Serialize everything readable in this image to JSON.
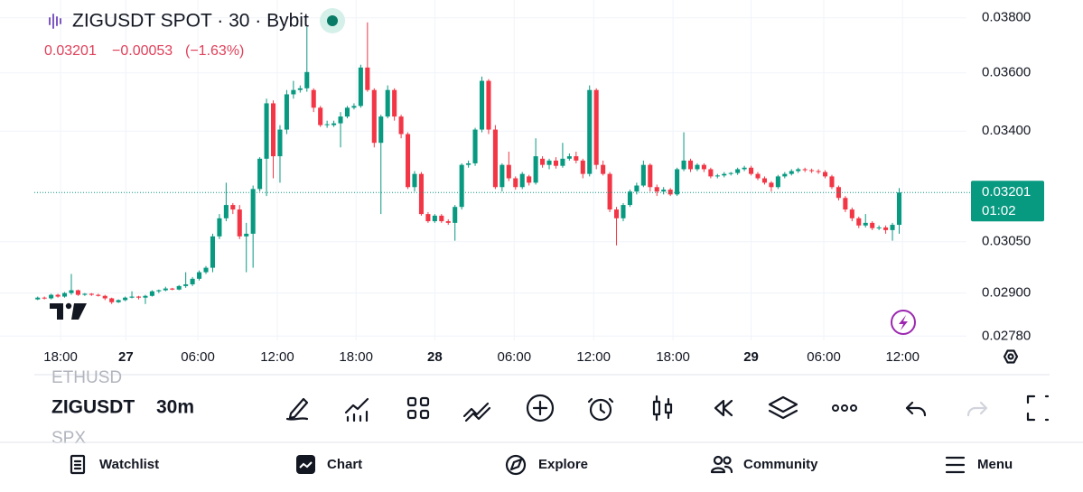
{
  "header": {
    "title": "ZIGUSDT SPOT · 30 · Bybit",
    "change": "−0.00053",
    "change_pct": "(−1.63%)"
  },
  "chart_data": {
    "type": "candlestick",
    "open": [
      0.02882,
      0.02887,
      0.02885,
      0.02895,
      0.0289,
      0.029,
      0.02908,
      0.02895,
      0.02898,
      0.02895,
      0.02892,
      0.02885,
      0.02874,
      0.0288,
      0.02887,
      0.0289,
      0.02887,
      0.02892,
      0.02905,
      0.02908,
      0.02913,
      0.0291,
      0.0292,
      0.02925,
      0.02941,
      0.0296,
      0.02973,
      0.03066,
      0.03121,
      0.03162,
      0.03148,
      0.03066,
      0.03074,
      0.03212,
      0.03309,
      0.03494,
      0.03317,
      0.03405,
      0.03525,
      0.0354,
      0.03546,
      0.0354,
      0.03479,
      0.0342,
      0.0342,
      0.03426,
      0.03449,
      0.03479,
      0.03485,
      0.03619,
      0.0354,
      0.03361,
      0.03449,
      0.0354,
      0.03449,
      0.0339,
      0.03218,
      0.0326,
      0.03134,
      0.03112,
      0.03129,
      0.03112,
      0.03107,
      0.03156,
      0.03289,
      0.03294,
      0.03405,
      0.03572,
      0.03405,
      0.03218,
      0.03289,
      0.03246,
      0.03218,
      0.03252,
      0.03232,
      0.03309,
      0.03289,
      0.03303,
      0.03286,
      0.03309,
      0.03317,
      0.03303,
      0.0326,
      0.0354,
      0.03289,
      0.0326,
      0.03148,
      0.03121,
      0.03162,
      0.03204,
      0.03223,
      0.03289,
      0.03218,
      0.03204,
      0.0321,
      0.03195,
      0.03275,
      0.03303,
      0.03275,
      0.03289,
      0.03275,
      0.03252,
      0.03255,
      0.0326,
      0.03263,
      0.03275,
      0.0328,
      0.0326,
      0.03246,
      0.03232,
      0.03218,
      0.03252,
      0.0326,
      0.03269,
      0.03275,
      0.03272,
      0.03269,
      0.03266,
      0.03252,
      0.03218,
      0.03184,
      0.03148,
      0.03121,
      0.03099,
      0.03107,
      0.03091,
      0.03093,
      0.03085,
      0.03101
    ],
    "high": [
      0.0289,
      0.0289,
      0.02898,
      0.02898,
      0.02903,
      0.02955,
      0.0291,
      0.029,
      0.029,
      0.02898,
      0.02895,
      0.02887,
      0.02882,
      0.0289,
      0.02905,
      0.02892,
      0.02895,
      0.02908,
      0.0291,
      0.02918,
      0.02915,
      0.02923,
      0.0296,
      0.02946,
      0.02965,
      0.02978,
      0.03074,
      0.03134,
      0.03232,
      0.03168,
      0.03162,
      0.03107,
      0.03223,
      0.03314,
      0.0351,
      0.03504,
      0.0342,
      0.0354,
      0.03572,
      0.03556,
      0.03766,
      0.03546,
      0.03485,
      0.03435,
      0.03435,
      0.03464,
      0.03485,
      0.03494,
      0.03629,
      0.03783,
      0.03546,
      0.03455,
      0.03556,
      0.03546,
      0.03455,
      0.03396,
      0.03269,
      0.03266,
      0.0314,
      0.03134,
      0.03134,
      0.03118,
      0.03162,
      0.03294,
      0.03303,
      0.03411,
      0.03587,
      0.03578,
      0.0342,
      0.03294,
      0.03332,
      0.03252,
      0.03266,
      0.03257,
      0.03376,
      0.03317,
      0.03309,
      0.03314,
      0.03361,
      0.03326,
      0.03332,
      0.03309,
      0.03556,
      0.03546,
      0.03303,
      0.03266,
      0.03156,
      0.03168,
      0.0321,
      0.03232,
      0.03303,
      0.03294,
      0.03226,
      0.03218,
      0.03215,
      0.0328,
      0.03396,
      0.03309,
      0.03294,
      0.03294,
      0.0328,
      0.0326,
      0.03266,
      0.03266,
      0.0328,
      0.03286,
      0.03286,
      0.03266,
      0.03252,
      0.03237,
      0.03257,
      0.03266,
      0.03275,
      0.0328,
      0.0328,
      0.03277,
      0.03275,
      0.03272,
      0.03257,
      0.03223,
      0.0319,
      0.03154,
      0.03126,
      0.03134,
      0.03112,
      0.03099,
      0.03099,
      0.03107,
      0.03215
    ],
    "low": [
      0.0288,
      0.02882,
      0.02882,
      0.02887,
      0.02887,
      0.02895,
      0.02892,
      0.02892,
      0.02892,
      0.0289,
      0.0288,
      0.02869,
      0.02872,
      0.02877,
      0.02885,
      0.02882,
      0.02869,
      0.0289,
      0.029,
      0.02905,
      0.02908,
      0.02908,
      0.02915,
      0.0292,
      0.02936,
      0.02955,
      0.0296,
      0.03058,
      0.03112,
      0.03134,
      0.03058,
      0.0296,
      0.02973,
      0.03204,
      0.0319,
      0.03246,
      0.03232,
      0.0339,
      0.0351,
      0.03531,
      0.03534,
      0.03464,
      0.03414,
      0.03411,
      0.03414,
      0.03346,
      0.03443,
      0.03473,
      0.03479,
      0.03534,
      0.03346,
      0.03134,
      0.03443,
      0.03435,
      0.03376,
      0.03212,
      0.03204,
      0.03129,
      0.03107,
      0.03107,
      0.03107,
      0.03101,
      0.03053,
      0.03148,
      0.0328,
      0.03286,
      0.03396,
      0.0339,
      0.03212,
      0.03204,
      0.03237,
      0.0321,
      0.03212,
      0.03223,
      0.03226,
      0.0328,
      0.03275,
      0.03277,
      0.0328,
      0.03303,
      0.03294,
      0.03246,
      0.03252,
      0.03275,
      0.03255,
      0.0314,
      0.03039,
      0.03112,
      0.03156,
      0.03195,
      0.03218,
      0.03204,
      0.0319,
      0.03195,
      0.0319,
      0.0319,
      0.03269,
      0.03266,
      0.03269,
      0.03266,
      0.03246,
      0.03246,
      0.03249,
      0.03255,
      0.03257,
      0.03269,
      0.03255,
      0.0324,
      0.03226,
      0.03204,
      0.03212,
      0.03246,
      0.03255,
      0.03263,
      0.03266,
      0.03263,
      0.0326,
      0.03246,
      0.03212,
      0.03176,
      0.0314,
      0.03112,
      0.03091,
      0.03093,
      0.03085,
      0.03085,
      0.03074,
      0.03053,
      0.03074
    ],
    "close": [
      0.02887,
      0.02885,
      0.02895,
      0.0289,
      0.029,
      0.02908,
      0.02895,
      0.02898,
      0.02895,
      0.02892,
      0.02885,
      0.02874,
      0.0288,
      0.02887,
      0.0289,
      0.02887,
      0.02892,
      0.02905,
      0.02908,
      0.02913,
      0.0291,
      0.0292,
      0.02925,
      0.02941,
      0.0296,
      0.02973,
      0.03066,
      0.03121,
      0.03162,
      0.03148,
      0.03066,
      0.03074,
      0.03212,
      0.03309,
      0.03494,
      0.03317,
      0.03405,
      0.03525,
      0.0354,
      0.03546,
      0.03603,
      0.03479,
      0.0342,
      0.03423,
      0.03426,
      0.03449,
      0.03479,
      0.03485,
      0.03619,
      0.0354,
      0.03361,
      0.03449,
      0.0354,
      0.03449,
      0.0339,
      0.03218,
      0.0326,
      0.03134,
      0.03112,
      0.03129,
      0.03112,
      0.03107,
      0.03156,
      0.03289,
      0.03294,
      0.03405,
      0.03572,
      0.03405,
      0.03218,
      0.03289,
      0.03246,
      0.03218,
      0.0326,
      0.03232,
      0.03317,
      0.03289,
      0.03303,
      0.03286,
      0.03309,
      0.03317,
      0.03303,
      0.0326,
      0.0354,
      0.03289,
      0.0326,
      0.03148,
      0.03121,
      0.03162,
      0.03204,
      0.03223,
      0.03289,
      0.03218,
      0.03204,
      0.0321,
      0.03195,
      0.03275,
      0.03303,
      0.03275,
      0.03289,
      0.03275,
      0.03252,
      0.03255,
      0.0326,
      0.03263,
      0.03275,
      0.0328,
      0.0326,
      0.03246,
      0.03232,
      0.03218,
      0.03252,
      0.0326,
      0.03269,
      0.03275,
      0.03272,
      0.03269,
      0.03266,
      0.03252,
      0.03218,
      0.03184,
      0.03148,
      0.03121,
      0.03099,
      0.03107,
      0.03091,
      0.03093,
      0.03085,
      0.03101,
      0.03201
    ],
    "up_color": "#089981",
    "down_color": "#f23645",
    "xlim": [
      -0.5,
      138
    ],
    "xticks": [
      {
        "value": 3.4,
        "label": "18:00"
      },
      {
        "value": 13.1,
        "label": "27"
      },
      {
        "value": 23.8,
        "label": "06:00"
      },
      {
        "value": 35.6,
        "label": "12:00"
      },
      {
        "value": 47.3,
        "label": "18:00"
      },
      {
        "value": 59,
        "label": "28"
      },
      {
        "value": 70.8,
        "label": "06:00"
      },
      {
        "value": 82.6,
        "label": "12:00"
      },
      {
        "value": 94.4,
        "label": "18:00"
      },
      {
        "value": 106,
        "label": "29"
      },
      {
        "value": 116.8,
        "label": "06:00"
      },
      {
        "value": 128.5,
        "label": "12:00"
      }
    ],
    "ylim": [
      0.02766,
      0.0385
    ],
    "yticks": [
      {
        "value": 0.038,
        "label": "0.03800"
      },
      {
        "value": 0.036,
        "label": "0.03600"
      },
      {
        "value": 0.034,
        "label": "0.03400"
      },
      {
        "value": 0.0305,
        "label": "0.03050"
      },
      {
        "value": 0.029,
        "label": "0.02900"
      },
      {
        "value": 0.0278,
        "label": "0.02780"
      }
    ],
    "log_scale": true,
    "grid": true,
    "price_tag_countdown": "01:02"
  },
  "toolbar": {
    "symbols": [
      "ETHUSD",
      "ZIGUSDT",
      "SPX"
    ],
    "interval": "30m"
  },
  "nav": [
    "Watchlist",
    "Chart",
    "Explore",
    "Community",
    "Menu"
  ]
}
